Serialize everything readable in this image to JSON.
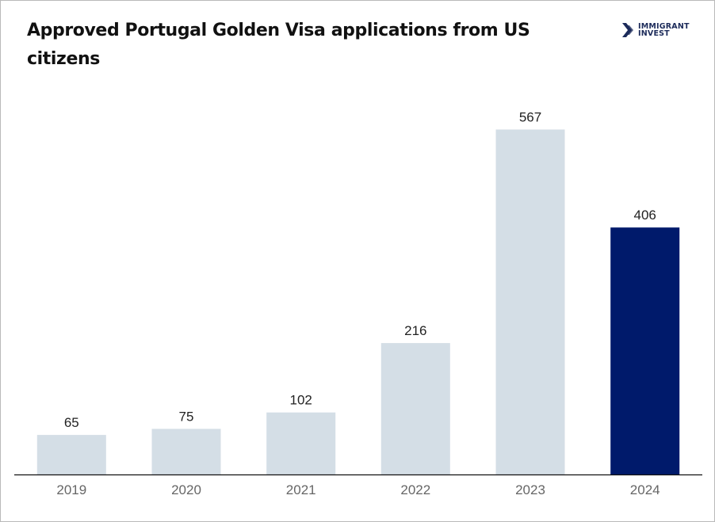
{
  "logo": {
    "line1": "IMMIGRANT",
    "line2": "INVEST",
    "icon": "immigrant-invest-logo-icon"
  },
  "colors": {
    "bar": "#d4dee6",
    "highlight": "#001a6b",
    "axis": "#111111",
    "tick_text": "#666666",
    "label_text": "#222222"
  },
  "chart_data": {
    "type": "bar",
    "title": "Approved Portugal Golden Visa applications from US citizens",
    "xlabel": "",
    "ylabel": "",
    "categories": [
      "2019",
      "2020",
      "2021",
      "2022",
      "2023",
      "2024"
    ],
    "values": [
      65,
      75,
      102,
      216,
      567,
      406
    ],
    "data_labels": [
      "65",
      "75",
      "102",
      "216",
      "567",
      "406"
    ],
    "highlighted_category": "2024",
    "ylim": [
      0,
      650
    ],
    "grid": false,
    "legend": "none"
  }
}
